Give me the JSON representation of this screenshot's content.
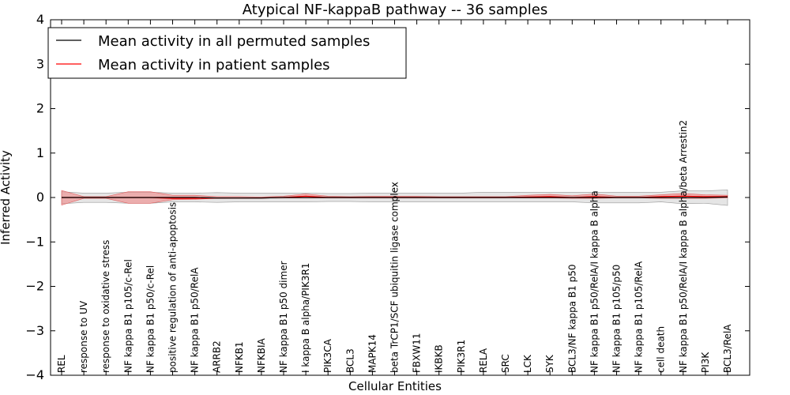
{
  "chart_data": {
    "type": "line",
    "title": "Atypical NF-kappaB pathway -- 36 samples",
    "xlabel": "Cellular Entities",
    "ylabel": "Inferred Activity",
    "ylim": [
      -4,
      4
    ],
    "yticks": [
      4,
      3,
      2,
      1,
      0,
      -1,
      -2,
      -3,
      -4
    ],
    "ytick_labels": [
      "4",
      "3",
      "2",
      "1",
      "0",
      "−1",
      "−2",
      "−3",
      "−4"
    ],
    "grid": false,
    "legend_position": "top-left",
    "categories": [
      "REL",
      "response to UV",
      "response to oxidative stress",
      "NF kappa B1 p105/c-Rel",
      "NF kappa B1 p50/c-Rel",
      "positive regulation of anti-apoptosis",
      "NF kappa B1 p50/RelA",
      "ARRB2",
      "NFKB1",
      "NFKBIA",
      "NF kappa B1 p50 dimer",
      "I kappa B alpha/PIK3R1",
      "PIK3CA",
      "BCL3",
      "MAPK14",
      "beta TrCP1/SCF ubiquitin ligase complex",
      "FBXW11",
      "IKBKB",
      "PIK3R1",
      "RELA",
      "SRC",
      "LCK",
      "SYK",
      "BCL3/NF kappa B1 p50",
      "NF kappa B1 p50/RelA/I kappa B alpha",
      "NF kappa B1 p105/p50",
      "NF kappa B1 p105/RelA",
      "cell death",
      "NF kappa B1 p50/RelA/I kappa B alpha/beta Arrestin2",
      "PI3K",
      "BCL3/RelA"
    ],
    "series": [
      {
        "name": "Mean activity in all permuted samples",
        "color": "#000000",
        "values": [
          0,
          0,
          0,
          0,
          0,
          0,
          0,
          -0.01,
          -0.01,
          -0.01,
          0,
          0,
          0,
          0,
          0,
          0,
          0,
          0,
          0,
          0,
          0,
          0,
          0,
          0,
          0,
          0,
          0,
          0,
          0,
          0,
          0.01
        ],
        "band_lower": [
          -0.14,
          -0.11,
          -0.11,
          -0.13,
          -0.13,
          -0.1,
          -0.1,
          -0.11,
          -0.1,
          -0.1,
          -0.1,
          -0.1,
          -0.09,
          -0.09,
          -0.1,
          -0.1,
          -0.1,
          -0.1,
          -0.1,
          -0.1,
          -0.1,
          -0.1,
          -0.1,
          -0.1,
          -0.12,
          -0.12,
          -0.12,
          -0.1,
          -0.14,
          -0.13,
          -0.18
        ],
        "band_upper": [
          0.13,
          0.1,
          0.1,
          0.12,
          0.12,
          0.1,
          0.1,
          0.11,
          0.1,
          0.1,
          0.1,
          0.1,
          0.09,
          0.09,
          0.1,
          0.1,
          0.1,
          0.1,
          0.1,
          0.12,
          0.12,
          0.12,
          0.12,
          0.12,
          0.12,
          0.12,
          0.12,
          0.12,
          0.15,
          0.15,
          0.17
        ]
      },
      {
        "name": "Mean activity in patient samples",
        "color": "#ff0000",
        "values": [
          0,
          0,
          0,
          0,
          0,
          -0.02,
          -0.02,
          -0.01,
          -0.01,
          -0.01,
          0,
          0.03,
          0,
          0,
          0,
          0,
          0,
          0,
          0,
          0,
          0,
          0.01,
          0.02,
          0,
          0.02,
          0,
          0,
          0.02,
          0.03,
          0.02,
          0.02
        ],
        "band_lower": [
          -0.17,
          -0.02,
          -0.02,
          -0.13,
          -0.13,
          -0.05,
          -0.04,
          -0.02,
          -0.01,
          -0.01,
          -0.01,
          -0.01,
          -0.01,
          -0.01,
          -0.01,
          -0.01,
          -0.01,
          -0.01,
          -0.01,
          -0.01,
          -0.01,
          -0.01,
          -0.01,
          -0.02,
          -0.02,
          -0.01,
          -0.01,
          -0.02,
          -0.02,
          -0.02,
          -0.01
        ],
        "band_upper": [
          0.16,
          0.02,
          0.02,
          0.13,
          0.13,
          0.05,
          0.05,
          0.02,
          0.02,
          0.01,
          0.03,
          0.08,
          0.03,
          0.02,
          0.03,
          0.03,
          0.03,
          0.02,
          0.02,
          0.02,
          0.02,
          0.05,
          0.07,
          0.04,
          0.08,
          0.03,
          0.03,
          0.06,
          0.09,
          0.06,
          0.05
        ]
      }
    ]
  }
}
